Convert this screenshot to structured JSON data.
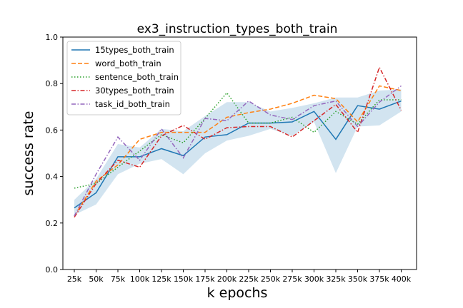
{
  "chart_data": {
    "type": "line",
    "title": "ex3_instruction_types_both_train",
    "xlabel": "k epochs",
    "ylabel": "success rate",
    "ylim": [
      0.0,
      1.0
    ],
    "yticks": [
      "0.0",
      "0.2",
      "0.4",
      "0.6",
      "0.8",
      "1.0"
    ],
    "categories": [
      "25k",
      "50k",
      "75k",
      "100k",
      "125k",
      "150k",
      "175k",
      "200k",
      "225k",
      "250k",
      "275k",
      "300k",
      "325k",
      "350k",
      "375k",
      "400k"
    ],
    "grid": false,
    "legend_position": "top-left",
    "series": [
      {
        "name": "15types_both_train",
        "color": "#1f77b4",
        "dash": "solid",
        "values": [
          0.265,
          0.33,
          0.485,
          0.485,
          0.52,
          0.49,
          0.57,
          0.58,
          0.63,
          0.63,
          0.635,
          0.68,
          0.56,
          0.705,
          0.69,
          0.725
        ]
      },
      {
        "name": "word_both_train",
        "color": "#ff7f0e",
        "dash": "dashed",
        "values": [
          0.23,
          0.38,
          0.45,
          0.56,
          0.59,
          0.59,
          0.59,
          0.655,
          0.675,
          0.69,
          0.715,
          0.75,
          0.735,
          0.635,
          0.79,
          0.77
        ]
      },
      {
        "name": "sentence_both_train",
        "color": "#2ca02c",
        "dash": "dotted",
        "values": [
          0.35,
          0.37,
          0.44,
          0.51,
          0.58,
          0.545,
          0.65,
          0.76,
          0.63,
          0.63,
          0.655,
          0.59,
          0.68,
          0.625,
          0.73,
          0.73
        ]
      },
      {
        "name": "30types_both_train",
        "color": "#d62728",
        "dash": "dashdot",
        "values": [
          0.225,
          0.37,
          0.47,
          0.44,
          0.575,
          0.62,
          0.56,
          0.61,
          0.615,
          0.615,
          0.57,
          0.64,
          0.71,
          0.59,
          0.87,
          0.685
        ]
      },
      {
        "name": "task_id_both_train",
        "color": "#9467bd",
        "dash": "dashdot",
        "values": [
          0.23,
          0.41,
          0.57,
          0.47,
          0.605,
          0.48,
          0.65,
          0.64,
          0.725,
          0.665,
          0.645,
          0.705,
          0.725,
          0.615,
          0.72,
          0.79
        ]
      }
    ],
    "band": {
      "color": "#1f77b4",
      "lower": [
        0.235,
        0.28,
        0.41,
        0.455,
        0.475,
        0.41,
        0.5,
        0.555,
        0.575,
        0.605,
        0.575,
        0.635,
        0.415,
        0.615,
        0.62,
        0.68
      ],
      "upper": [
        0.3,
        0.39,
        0.54,
        0.525,
        0.605,
        0.595,
        0.66,
        0.72,
        0.72,
        0.68,
        0.695,
        0.715,
        0.74,
        0.74,
        0.77,
        0.775
      ]
    }
  }
}
